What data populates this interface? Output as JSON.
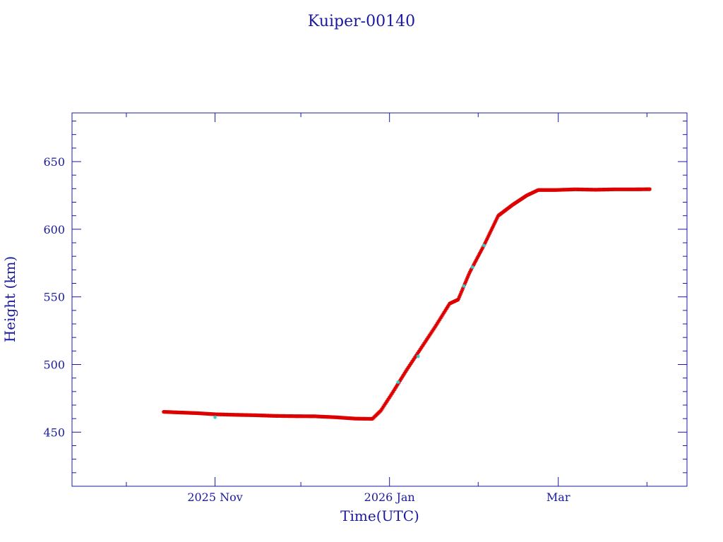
{
  "chart_data": {
    "type": "scatter",
    "title": "Kuiper-00140",
    "xlabel": "Time(UTC)",
    "ylabel": "Height (km)",
    "x_ticks": [
      {
        "date": "2025-11-01",
        "label": "2025 Nov"
      },
      {
        "date": "2026-01-01",
        "label": "2026 Jan"
      },
      {
        "date": "2026-03-01",
        "label": "Mar"
      }
    ],
    "x_minor_ticks": [
      "2025-10-01",
      "2025-12-01",
      "2026-02-01",
      "2026-04-01"
    ],
    "y_ticks": [
      450,
      500,
      550,
      600,
      650
    ],
    "xlim": [
      "2025-09-12",
      "2026-04-15"
    ],
    "ylim": [
      410,
      686
    ],
    "grid": false,
    "colors": {
      "axis": "#1a1aa0",
      "primary": "#dd0000",
      "secondary": "#30d0d0"
    },
    "series": [
      {
        "color": "#dd0000",
        "points": [
          [
            "2025-10-14",
            465
          ],
          [
            "2025-10-20",
            464.5
          ],
          [
            "2025-10-26",
            464
          ],
          [
            "2025-11-01",
            463.2
          ],
          [
            "2025-11-08",
            462.8
          ],
          [
            "2025-11-15",
            462.5
          ],
          [
            "2025-11-22",
            462.0
          ],
          [
            "2025-11-29",
            461.8
          ],
          [
            "2025-12-06",
            461.7
          ],
          [
            "2025-12-13",
            461.0
          ],
          [
            "2025-12-20",
            460.0
          ],
          [
            "2025-12-26",
            459.8
          ],
          [
            "2025-12-29",
            466
          ],
          [
            "2026-01-02",
            479
          ],
          [
            "2026-01-07",
            496
          ],
          [
            "2026-01-12",
            512
          ],
          [
            "2026-01-17",
            528
          ],
          [
            "2026-01-22",
            545
          ],
          [
            "2026-01-25",
            548
          ],
          [
            "2026-01-29",
            568
          ],
          [
            "2026-02-03",
            588
          ],
          [
            "2026-02-08",
            610
          ],
          [
            "2026-02-13",
            618
          ],
          [
            "2026-02-18",
            625
          ],
          [
            "2026-02-22",
            629
          ],
          [
            "2026-02-28",
            629
          ],
          [
            "2026-03-07",
            629.5
          ],
          [
            "2026-03-14",
            629.2
          ],
          [
            "2026-03-21",
            629.5
          ],
          [
            "2026-03-28",
            629.5
          ],
          [
            "2026-04-02",
            629.6
          ]
        ]
      },
      {
        "color": "#30d0d0",
        "points": [
          [
            "2025-11-01",
            461
          ],
          [
            "2026-01-04",
            487
          ],
          [
            "2026-01-11",
            506
          ],
          [
            "2026-01-27",
            558
          ],
          [
            "2026-01-30",
            572
          ],
          [
            "2026-02-03",
            588
          ]
        ]
      }
    ]
  }
}
